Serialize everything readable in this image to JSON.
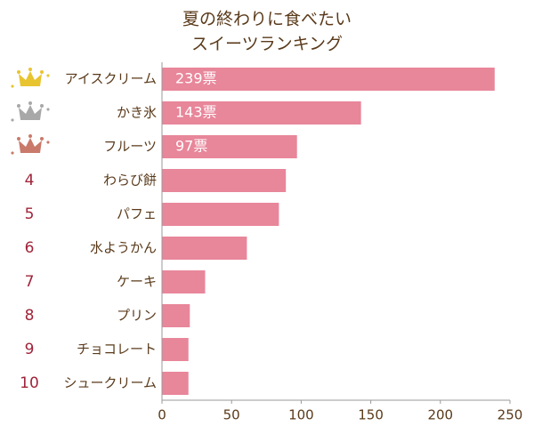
{
  "chart_data": {
    "type": "hbar",
    "title": [
      "夏の終わりに食べたい",
      "スイーツランキング"
    ],
    "categories": [
      "アイスクリーム",
      "かき氷",
      "フルーツ",
      "わらび餅",
      "パフェ",
      "水ようかん",
      "ケーキ",
      "プリン",
      "チョコレート",
      "シュークリーム"
    ],
    "ranks": [
      null,
      null,
      null,
      4,
      5,
      6,
      7,
      8,
      9,
      10
    ],
    "values": [
      239,
      143,
      97,
      89,
      84,
      61,
      31,
      20,
      19,
      19
    ],
    "value_labels": [
      "239票",
      "143票",
      "97票",
      null,
      null,
      null,
      null,
      null,
      null,
      null
    ],
    "color": "#e8869a",
    "xlim": [
      0,
      250
    ],
    "xticks": [
      0,
      50,
      100,
      150,
      200,
      250
    ]
  }
}
